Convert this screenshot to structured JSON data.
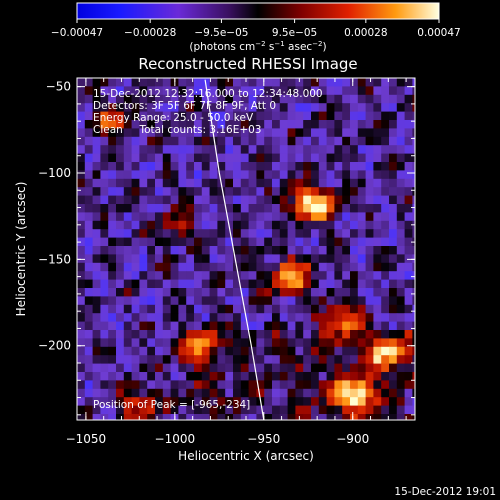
{
  "chart_data": {
    "type": "heatmap",
    "title": "Reconstructed RHESSI Image",
    "xlabel": "Heliocentric X (arcsec)",
    "ylabel": "Heliocentric Y (arcsec)",
    "xlim": [
      -1055,
      -865
    ],
    "ylim": [
      -243,
      -45
    ],
    "x_ticks": [
      -1050,
      -1000,
      -950,
      -900
    ],
    "x_tick_labels": [
      "−1050",
      "−1000",
      "−950",
      "−900"
    ],
    "y_ticks": [
      -50,
      -100,
      -150,
      -200
    ],
    "y_tick_labels": [
      "−50",
      "−100",
      "−150",
      "−200"
    ],
    "colorbar": {
      "min": -0.00047,
      "max": 0.00047,
      "ticks": [
        -0.00047,
        -0.00028,
        -9.5e-05,
        9.5e-05,
        0.00028,
        0.00047
      ],
      "tick_labels": [
        "−0.00047",
        "−0.00028",
        "−9.5e−05",
        "9.5e−05",
        "0.00028",
        "0.00047"
      ],
      "unit_main": "(photons cm",
      "unit_exp1": "−2",
      "unit_mid1": " s",
      "unit_exp2": "−1",
      "unit_mid2": " asec",
      "unit_exp3": "−2",
      "unit_end": ")"
    },
    "annotations": [
      "15-Dec-2012 12:32:16.000 to 12:34:48.000",
      "Detectors: 3F 5F 6F 7F 8F 9F, Att 0",
      "Energy Range: 25.0 - 50.0 keV",
      "Clean     Total counts: 3.16E+03"
    ],
    "peak_label": "Position of Peak = [-965,-234]",
    "limb_curve": [
      [
        -983,
        -46
      ],
      [
        -975,
        -100
      ],
      [
        -966,
        -150
      ],
      [
        -957,
        -200
      ],
      [
        -950,
        -243
      ]
    ],
    "hot_spots": [
      {
        "x": -923,
        "y": -118,
        "amp": 1.0
      },
      {
        "x": -935,
        "y": -160,
        "amp": 0.8
      },
      {
        "x": -905,
        "y": -185,
        "amp": 0.65
      },
      {
        "x": -900,
        "y": -228,
        "amp": 1.0
      },
      {
        "x": -880,
        "y": -205,
        "amp": 0.7
      },
      {
        "x": -985,
        "y": -200,
        "amp": 0.55
      },
      {
        "x": -1020,
        "y": -235,
        "amp": 0.55
      },
      {
        "x": -1000,
        "y": -130,
        "amp": 0.4
      },
      {
        "x": -1035,
        "y": -70,
        "amp": 0.45
      }
    ]
  },
  "footer": {
    "timestamp": "15-Dec-2012 19:01"
  }
}
